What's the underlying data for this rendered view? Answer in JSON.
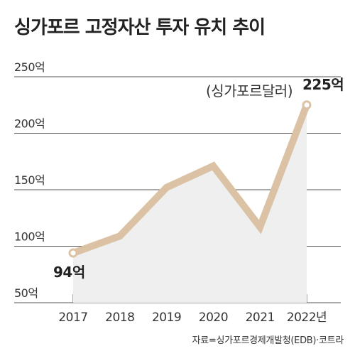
{
  "title": "싱가포르 고정자산 투자 유치 추이",
  "unit_note": "(싱가포르달러)",
  "source": "자료=싱가포르경제개발청(EDB)·코트라",
  "colors": {
    "line": "#dcc2a4",
    "area": "#efeff0",
    "grid": "#555555",
    "point_fill": "#ffffff"
  },
  "chart_data": {
    "type": "line",
    "categories": [
      "2017",
      "2018",
      "2019",
      "2020",
      "2021",
      "2022년"
    ],
    "series": [
      {
        "values": [
          94,
          109,
          152,
          171,
          117,
          225
        ]
      }
    ],
    "y_ticks": [
      "250억",
      "200억",
      "150억",
      "100억",
      "50억"
    ],
    "ylim": [
      50,
      250
    ],
    "grid": true,
    "annotations": [
      {
        "index": 0,
        "text": "94억"
      },
      {
        "index": 5,
        "text": "225억"
      }
    ]
  }
}
